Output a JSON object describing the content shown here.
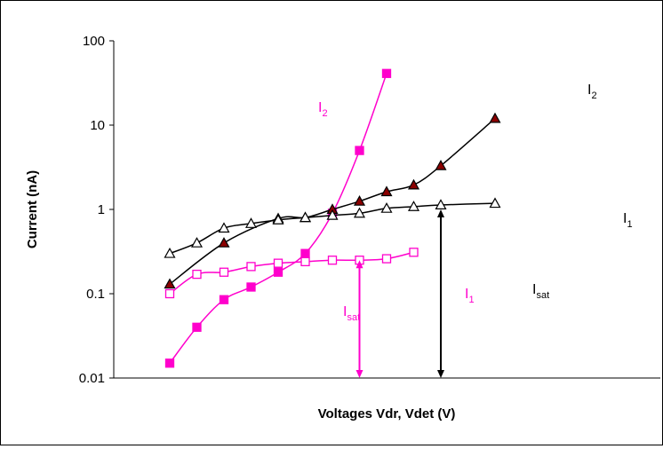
{
  "chart_data": {
    "type": "scatter",
    "title": "",
    "xlabel": "Voltages Vdr, Vdet (V)",
    "ylabel": "Current (nA)",
    "yscale": "log",
    "ylim": [
      0.01,
      100
    ],
    "yticks": [
      {
        "value": 100,
        "label": "100"
      },
      {
        "value": 10,
        "label": "10"
      },
      {
        "value": 1,
        "label": "1"
      },
      {
        "value": 0.1,
        "label": "0.1"
      },
      {
        "value": 0.01,
        "label": "0.01"
      }
    ],
    "x_ticks_labeled": false,
    "grid": false,
    "legend": "none",
    "series": [
      {
        "key": "magenta_i2",
        "color": "#ff00cc",
        "marker": "square-filled",
        "points": [
          [
            1,
            0.015
          ],
          [
            2,
            0.04
          ],
          [
            3,
            0.085
          ],
          [
            4,
            0.12
          ],
          [
            5,
            0.18
          ],
          [
            6,
            0.3
          ],
          [
            7,
            0.9
          ],
          [
            8,
            5.0
          ],
          [
            9,
            41
          ]
        ]
      },
      {
        "key": "magenta_i1",
        "color": "#ff00cc",
        "marker": "square-open",
        "points": [
          [
            1,
            0.1
          ],
          [
            2,
            0.17
          ],
          [
            3,
            0.18
          ],
          [
            4,
            0.21
          ],
          [
            5,
            0.23
          ],
          [
            6,
            0.24
          ],
          [
            7,
            0.25
          ],
          [
            8,
            0.25
          ],
          [
            9,
            0.26
          ],
          [
            10,
            0.31
          ]
        ]
      },
      {
        "key": "black_i2",
        "color": "#000000",
        "marker": "triangle-filled",
        "marker_fill": "#8b0000",
        "points": [
          [
            1,
            0.13
          ],
          [
            3,
            0.4
          ],
          [
            5,
            0.78
          ],
          [
            6,
            0.8
          ],
          [
            7,
            1.0
          ],
          [
            8,
            1.25
          ],
          [
            9,
            1.62
          ],
          [
            10,
            1.95
          ],
          [
            11,
            3.3
          ],
          [
            13,
            12
          ]
        ]
      },
      {
        "key": "black_i1",
        "color": "#000000",
        "marker": "triangle-open",
        "points": [
          [
            1,
            0.3
          ],
          [
            2,
            0.4
          ],
          [
            3,
            0.6
          ],
          [
            4,
            0.68
          ],
          [
            5,
            0.75
          ],
          [
            6,
            0.8
          ],
          [
            7,
            0.85
          ],
          [
            8,
            0.9
          ],
          [
            9,
            1.03
          ],
          [
            10,
            1.08
          ],
          [
            11,
            1.13
          ],
          [
            13,
            1.18
          ]
        ]
      }
    ],
    "annotations": [
      {
        "key": "label_I2_magenta",
        "text": "I",
        "sub": "2",
        "color": "#ff00cc"
      },
      {
        "key": "label_I2_black",
        "text": "I",
        "sub": "2",
        "color": "#000000"
      },
      {
        "key": "label_I1_black",
        "text": "I",
        "sub": "1",
        "color": "#000000"
      },
      {
        "key": "label_I1_magenta",
        "text": "I",
        "sub": "1",
        "color": "#ff00cc"
      },
      {
        "key": "label_Isat_magenta",
        "text": "I",
        "sub": "sat",
        "color": "#ff00cc"
      },
      {
        "key": "label_Isat_black",
        "text": "I",
        "sub": "sat",
        "color": "#000000"
      }
    ],
    "arrows": [
      {
        "key": "isat_arrow_magenta",
        "color": "#ff00cc",
        "x": 8,
        "y_from": 0.25,
        "y_to": 0.01
      },
      {
        "key": "isat_arrow_black",
        "color": "#000000",
        "x": 11,
        "y_from": 1.0,
        "y_to": 0.01
      }
    ]
  }
}
